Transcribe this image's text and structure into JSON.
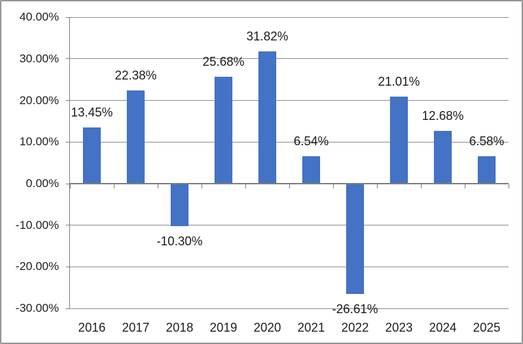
{
  "chart_data": {
    "type": "bar",
    "title": "",
    "xlabel": "",
    "ylabel": "",
    "categories": [
      "2016",
      "2017",
      "2018",
      "2019",
      "2020",
      "2021",
      "2022",
      "2023",
      "2024",
      "2025"
    ],
    "values": [
      13.45,
      22.38,
      -10.3,
      25.68,
      31.82,
      6.54,
      -26.61,
      21.01,
      12.68,
      6.58
    ],
    "data_labels": [
      "13.45%",
      "22.38%",
      "-10.30%",
      "25.68%",
      "31.82%",
      "6.54%",
      "-26.61%",
      "21.01%",
      "12.68%",
      "6.58%"
    ],
    "ylim": [
      -30,
      40
    ],
    "ytick_step": 10,
    "ytick_labels": [
      "40.00%",
      "30.00%",
      "20.00%",
      "10.00%",
      "0.00%",
      "-10.00%",
      "-20.00%",
      "-30.00%"
    ],
    "grid": true,
    "legend": false,
    "colors": {
      "bar": "#4472C4",
      "gridline": "#8F8F8F",
      "axis": "#7F7F7F",
      "text": "#202020",
      "border": "#969696",
      "background": "#FFFFFF"
    }
  }
}
